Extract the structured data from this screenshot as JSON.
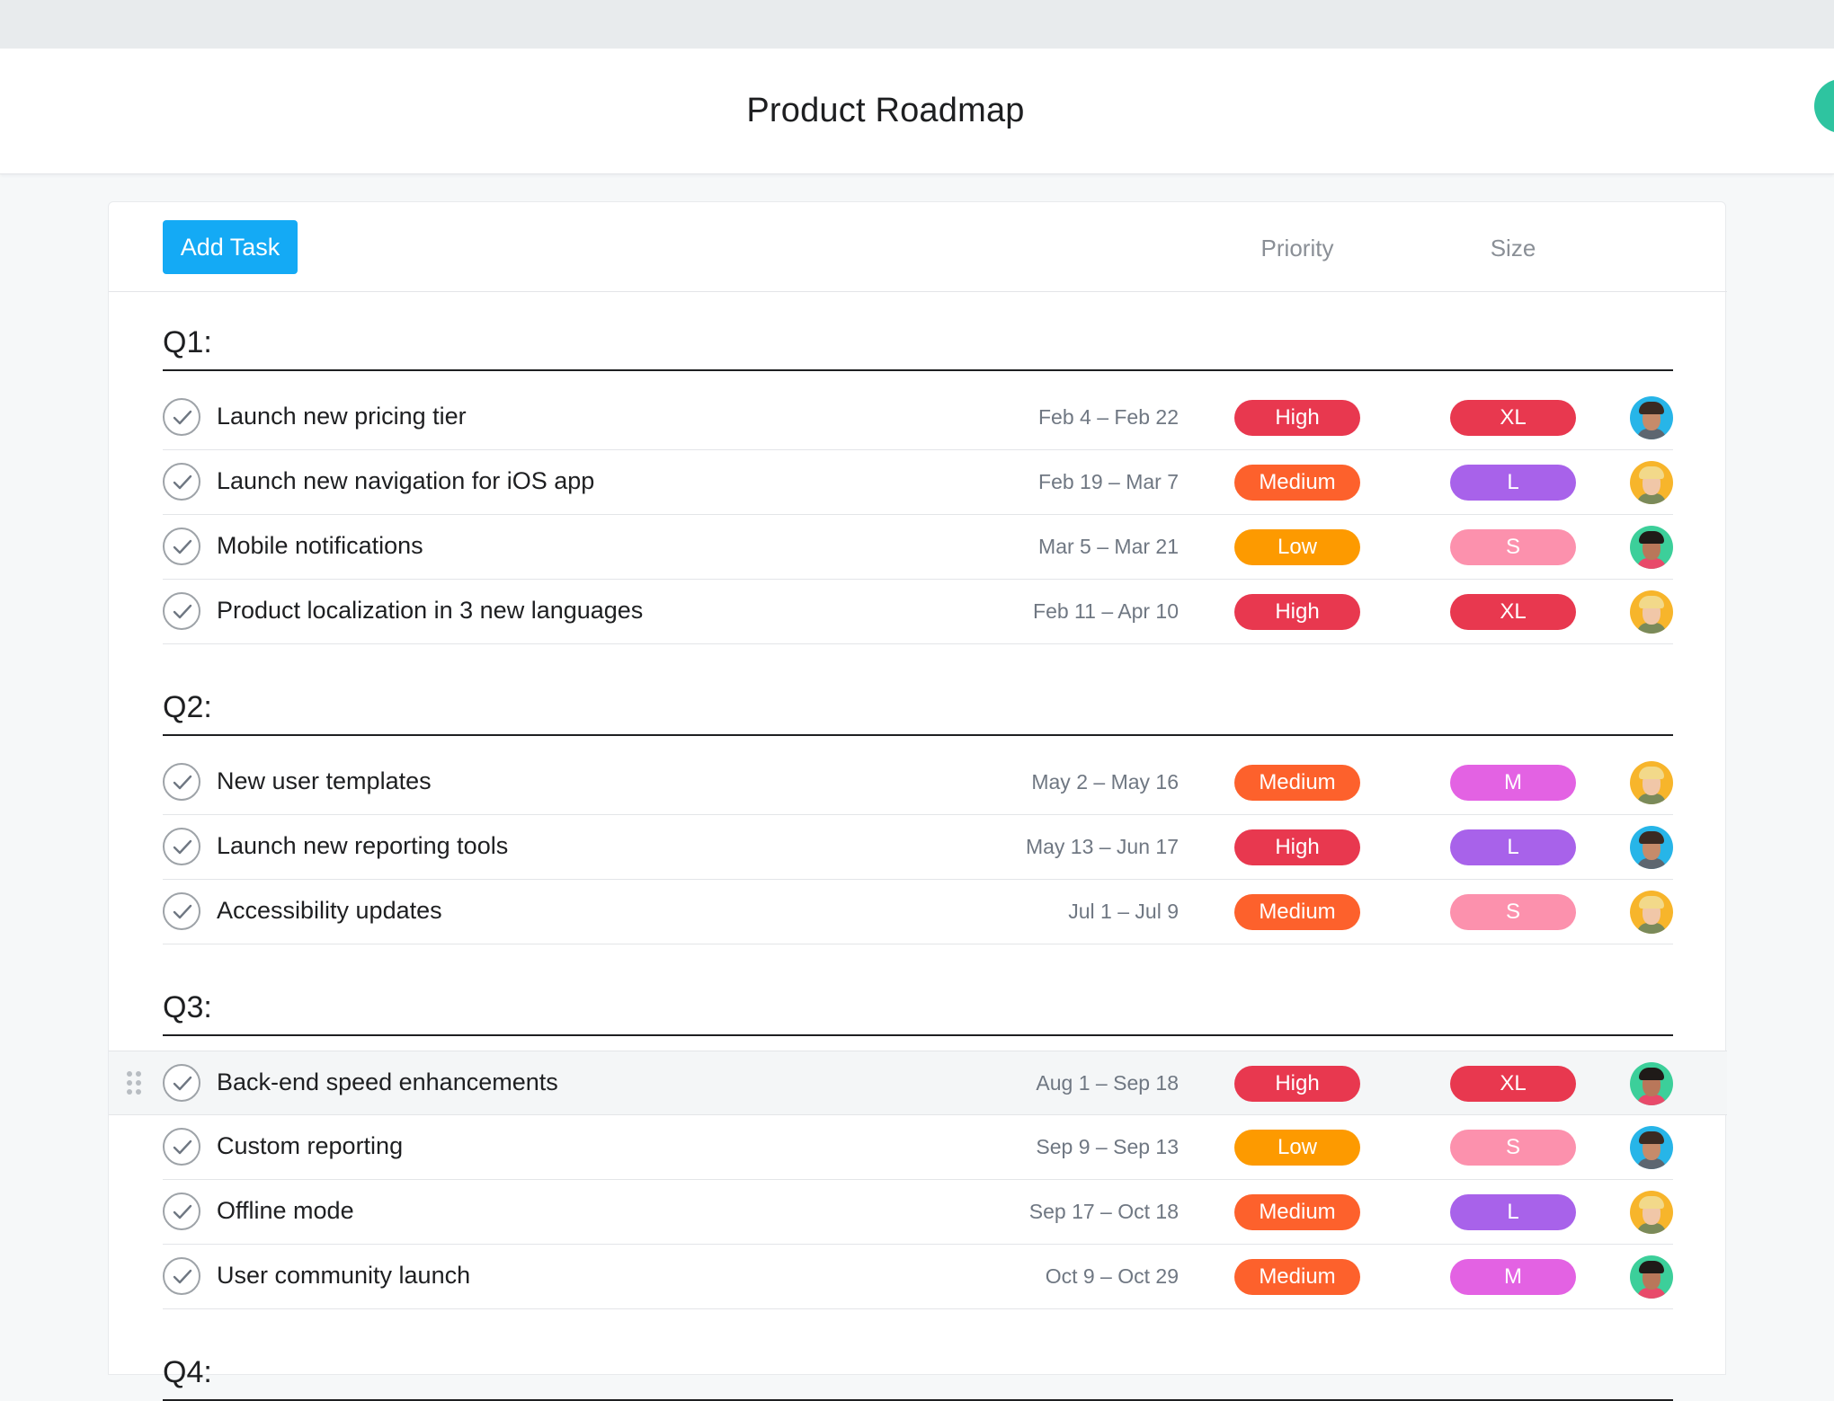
{
  "header": {
    "title": "Product Roadmap"
  },
  "toolbar": {
    "add_task_label": "Add Task",
    "priority_header": "Priority",
    "size_header": "Size"
  },
  "colors": {
    "high": "#e8384f",
    "medium": "#fd612c",
    "low": "#fd9a00",
    "xl": "#e8384f",
    "l": "#a862ea",
    "m": "#e362e3",
    "s": "#fc91ad",
    "add_button": "#14aaf5"
  },
  "sections": [
    {
      "label": "Q1:",
      "tasks": [
        {
          "name": "Launch new pricing tier",
          "dates": "Feb 4 – Feb 22",
          "priority": "High",
          "size": "XL",
          "assignee": "avatar-man-blue"
        },
        {
          "name": "Launch new navigation for iOS app",
          "dates": "Feb 19 – Mar 7",
          "priority": "Medium",
          "size": "L",
          "assignee": "avatar-woman-yellow"
        },
        {
          "name": "Mobile notifications",
          "dates": "Mar 5 – Mar 21",
          "priority": "Low",
          "size": "S",
          "assignee": "avatar-woman-green"
        },
        {
          "name": "Product localization in 3 new languages",
          "dates": "Feb 11 – Apr 10",
          "priority": "High",
          "size": "XL",
          "assignee": "avatar-woman-yellow"
        }
      ]
    },
    {
      "label": "Q2:",
      "tasks": [
        {
          "name": "New user templates",
          "dates": "May 2 – May 16",
          "priority": "Medium",
          "size": "M",
          "assignee": "avatar-woman-yellow"
        },
        {
          "name": "Launch new reporting tools",
          "dates": "May 13 – Jun 17",
          "priority": "High",
          "size": "L",
          "assignee": "avatar-man-blue"
        },
        {
          "name": "Accessibility updates",
          "dates": "Jul 1 – Jul 9",
          "priority": "Medium",
          "size": "S",
          "assignee": "avatar-woman-yellow"
        }
      ]
    },
    {
      "label": "Q3:",
      "tasks": [
        {
          "name": "Back-end speed enhancements",
          "dates": "Aug 1 – Sep 18",
          "priority": "High",
          "size": "XL",
          "assignee": "avatar-woman-green"
        },
        {
          "name": "Custom reporting",
          "dates": "Sep 9 – Sep 13",
          "priority": "Low",
          "size": "S",
          "assignee": "avatar-man-blue"
        },
        {
          "name": "Offline mode",
          "dates": "Sep 17 – Oct 18",
          "priority": "Medium",
          "size": "L",
          "assignee": "avatar-woman-yellow"
        },
        {
          "name": "User community launch",
          "dates": "Oct 9 – Oct 29",
          "priority": "Medium",
          "size": "M",
          "assignee": "avatar-woman-green"
        }
      ]
    },
    {
      "label": "Q4:",
      "tasks": []
    }
  ]
}
